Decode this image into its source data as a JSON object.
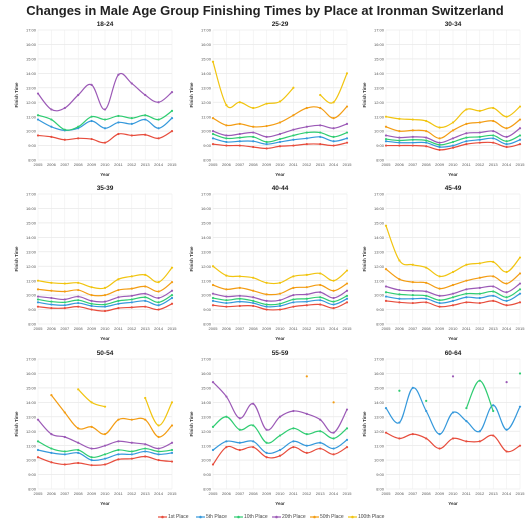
{
  "title": "Changes in Male Age Group Finishing Times by Place at Ironman Switzerland",
  "colors": {
    "1st Place": "#e74c3c",
    "5th Place": "#3498db",
    "10th Place": "#2ecc71",
    "20th Place": "#9b59b6",
    "50th Place": "#f39c12",
    "100th Place": "#f1c40f"
  },
  "legend": [
    "1st Place",
    "5th Place",
    "10th Place",
    "20th Place",
    "50th Place",
    "100th Place"
  ],
  "chart_data": [
    {
      "type": "line",
      "title": "18-24",
      "xlabel": "Year",
      "ylabel": "Finish Time",
      "x": [
        "2005",
        "2006",
        "2007",
        "2008",
        "2009",
        "2010",
        "2011",
        "2012",
        "2013",
        "2014",
        "2015"
      ],
      "y_ticks": [
        "8:00",
        "9:00",
        "10:00",
        "11:00",
        "12:00",
        "13:00",
        "14:00",
        "15:00",
        "16:00",
        "17:00"
      ],
      "ylim": [
        8,
        17
      ],
      "series": [
        {
          "name": "1st Place",
          "values": [
            9.7,
            9.6,
            9.4,
            9.5,
            9.45,
            9.2,
            9.8,
            9.7,
            9.75,
            9.5,
            10.0
          ]
        },
        {
          "name": "5th Place",
          "values": [
            10.8,
            10.3,
            10.05,
            10.2,
            10.7,
            10.2,
            10.6,
            10.5,
            10.8,
            10.2,
            10.9
          ]
        },
        {
          "name": "10th Place",
          "values": [
            11.1,
            10.8,
            10.1,
            10.3,
            11.0,
            10.8,
            11.05,
            10.9,
            11.1,
            10.8,
            11.4
          ]
        },
        {
          "name": "20th Place",
          "values": [
            12.6,
            11.5,
            11.6,
            12.5,
            13.2,
            11.5,
            13.9,
            13.3,
            12.5,
            12.0,
            12.7
          ]
        }
      ]
    },
    {
      "type": "line",
      "title": "25-29",
      "xlabel": "Year",
      "ylabel": "Finish Time",
      "x": [
        "2005",
        "2006",
        "2007",
        "2008",
        "2009",
        "2010",
        "2011",
        "2012",
        "2013",
        "2014",
        "2015"
      ],
      "y_ticks": [
        "8:00",
        "9:00",
        "10:00",
        "11:00",
        "12:00",
        "13:00",
        "14:00",
        "15:00",
        "16:00",
        "17:00"
      ],
      "ylim": [
        8,
        17
      ],
      "series": [
        {
          "name": "1st Place",
          "values": [
            9.1,
            9.0,
            9.0,
            8.9,
            8.8,
            8.95,
            9.0,
            9.1,
            9.1,
            9.0,
            9.2
          ]
        },
        {
          "name": "5th Place",
          "values": [
            9.5,
            9.25,
            9.3,
            9.3,
            9.1,
            9.25,
            9.4,
            9.5,
            9.6,
            9.3,
            9.5
          ]
        },
        {
          "name": "10th Place",
          "values": [
            9.8,
            9.5,
            9.55,
            9.6,
            9.25,
            9.45,
            9.7,
            9.9,
            9.9,
            9.6,
            9.9
          ]
        },
        {
          "name": "20th Place",
          "values": [
            10.0,
            9.7,
            9.8,
            9.9,
            9.6,
            9.8,
            10.1,
            10.3,
            10.4,
            10.2,
            10.5
          ]
        },
        {
          "name": "50th Place",
          "values": [
            10.9,
            10.4,
            10.5,
            10.3,
            10.35,
            10.6,
            11.1,
            11.6,
            11.6,
            10.9,
            11.7
          ]
        },
        {
          "name": "100th Place",
          "values": [
            14.8,
            11.8,
            12.0,
            11.6,
            11.9,
            12.05,
            13.0,
            null,
            12.5,
            12.0,
            14.0
          ]
        }
      ]
    },
    {
      "type": "line",
      "title": "30-34",
      "xlabel": "Year",
      "ylabel": "Finish Time",
      "x": [
        "2005",
        "2006",
        "2007",
        "2008",
        "2009",
        "2010",
        "2011",
        "2012",
        "2013",
        "2014",
        "2015"
      ],
      "y_ticks": [
        "8:00",
        "9:00",
        "10:00",
        "11:00",
        "12:00",
        "13:00",
        "14:00",
        "15:00",
        "16:00",
        "17:00"
      ],
      "ylim": [
        8,
        17
      ],
      "series": [
        {
          "name": "1st Place",
          "values": [
            9.0,
            9.0,
            9.0,
            8.95,
            8.7,
            8.85,
            9.1,
            9.2,
            9.2,
            8.9,
            9.1
          ]
        },
        {
          "name": "5th Place",
          "values": [
            9.3,
            9.2,
            9.2,
            9.2,
            8.9,
            9.0,
            9.3,
            9.4,
            9.5,
            9.1,
            9.4
          ]
        },
        {
          "name": "10th Place",
          "values": [
            9.45,
            9.35,
            9.4,
            9.35,
            9.05,
            9.25,
            9.55,
            9.6,
            9.7,
            9.3,
            9.7
          ]
        },
        {
          "name": "20th Place",
          "values": [
            9.7,
            9.55,
            9.6,
            9.55,
            9.2,
            9.5,
            9.85,
            9.9,
            10.0,
            9.6,
            10.2
          ]
        },
        {
          "name": "50th Place",
          "values": [
            10.3,
            10.0,
            10.05,
            10.0,
            9.5,
            10.05,
            10.5,
            10.6,
            10.7,
            10.2,
            10.8
          ]
        },
        {
          "name": "100th Place",
          "values": [
            11.0,
            10.85,
            10.8,
            10.7,
            10.25,
            10.6,
            11.5,
            11.4,
            11.6,
            11.0,
            11.7
          ]
        }
      ]
    },
    {
      "type": "line",
      "title": "35-39",
      "xlabel": "Year",
      "ylabel": "Finish Time",
      "x": [
        "2005",
        "2006",
        "2007",
        "2008",
        "2009",
        "2010",
        "2011",
        "2012",
        "2013",
        "2014",
        "2015"
      ],
      "y_ticks": [
        "8:00",
        "9:00",
        "10:00",
        "11:00",
        "12:00",
        "13:00",
        "14:00",
        "15:00",
        "16:00",
        "17:00"
      ],
      "ylim": [
        8,
        17
      ],
      "series": [
        {
          "name": "1st Place",
          "values": [
            9.2,
            9.1,
            9.1,
            9.2,
            9.0,
            8.9,
            9.1,
            9.15,
            9.2,
            9.0,
            9.4
          ]
        },
        {
          "name": "5th Place",
          "values": [
            9.5,
            9.35,
            9.3,
            9.45,
            9.25,
            9.2,
            9.4,
            9.5,
            9.6,
            9.3,
            9.8
          ]
        },
        {
          "name": "10th Place",
          "values": [
            9.7,
            9.55,
            9.5,
            9.65,
            9.4,
            9.35,
            9.6,
            9.7,
            9.85,
            9.5,
            10.0
          ]
        },
        {
          "name": "20th Place",
          "values": [
            9.9,
            9.8,
            9.7,
            9.9,
            9.6,
            9.55,
            9.85,
            9.95,
            10.1,
            9.8,
            10.3
          ]
        },
        {
          "name": "50th Place",
          "values": [
            10.4,
            10.3,
            10.25,
            10.35,
            10.0,
            10.0,
            10.35,
            10.45,
            10.6,
            10.25,
            10.9
          ]
        },
        {
          "name": "100th Place",
          "values": [
            11.0,
            10.85,
            10.8,
            10.85,
            10.55,
            10.5,
            11.1,
            11.3,
            11.4,
            10.9,
            11.9
          ]
        }
      ]
    },
    {
      "type": "line",
      "title": "40-44",
      "xlabel": "Year",
      "ylabel": "Finish Time",
      "x": [
        "2005",
        "2006",
        "2007",
        "2008",
        "2009",
        "2010",
        "2011",
        "2012",
        "2013",
        "2014",
        "2015"
      ],
      "y_ticks": [
        "8:00",
        "9:00",
        "10:00",
        "11:00",
        "12:00",
        "13:00",
        "14:00",
        "15:00",
        "16:00",
        "17:00"
      ],
      "ylim": [
        8,
        17
      ],
      "series": [
        {
          "name": "1st Place",
          "values": [
            9.3,
            9.2,
            9.25,
            9.25,
            9.0,
            9.0,
            9.2,
            9.3,
            9.35,
            9.1,
            9.5
          ]
        },
        {
          "name": "5th Place",
          "values": [
            9.6,
            9.45,
            9.55,
            9.45,
            9.2,
            9.25,
            9.5,
            9.55,
            9.65,
            9.35,
            9.75
          ]
        },
        {
          "name": "10th Place",
          "values": [
            9.8,
            9.65,
            9.75,
            9.6,
            9.35,
            9.4,
            9.7,
            9.75,
            9.85,
            9.55,
            9.95
          ]
        },
        {
          "name": "20th Place",
          "values": [
            10.1,
            9.9,
            9.95,
            9.85,
            9.6,
            9.65,
            10.0,
            10.05,
            10.2,
            9.8,
            10.3
          ]
        },
        {
          "name": "50th Place",
          "values": [
            10.7,
            10.4,
            10.5,
            10.3,
            10.05,
            10.1,
            10.5,
            10.55,
            10.7,
            10.3,
            10.8
          ]
        },
        {
          "name": "100th Place",
          "values": [
            12.0,
            11.35,
            11.3,
            11.2,
            10.85,
            10.85,
            11.3,
            11.4,
            11.5,
            11.0,
            11.7
          ]
        }
      ]
    },
    {
      "type": "line",
      "title": "45-49",
      "xlabel": "Year",
      "ylabel": "Finish Time",
      "x": [
        "2005",
        "2006",
        "2007",
        "2008",
        "2009",
        "2010",
        "2011",
        "2012",
        "2013",
        "2014",
        "2015"
      ],
      "y_ticks": [
        "8:00",
        "9:00",
        "10:00",
        "11:00",
        "12:00",
        "13:00",
        "14:00",
        "15:00",
        "16:00",
        "17:00"
      ],
      "ylim": [
        8,
        17
      ],
      "series": [
        {
          "name": "1st Place",
          "values": [
            9.6,
            9.5,
            9.45,
            9.5,
            9.2,
            9.3,
            9.5,
            9.45,
            9.6,
            9.3,
            9.5
          ]
        },
        {
          "name": "5th Place",
          "values": [
            9.9,
            9.75,
            9.75,
            9.75,
            9.45,
            9.6,
            9.85,
            9.8,
            9.95,
            9.6,
            10.1
          ]
        },
        {
          "name": "10th Place",
          "values": [
            10.2,
            10.05,
            10.0,
            9.95,
            9.65,
            9.85,
            10.1,
            10.1,
            10.25,
            9.85,
            10.4
          ]
        },
        {
          "name": "20th Place",
          "values": [
            10.6,
            10.35,
            10.3,
            10.25,
            9.95,
            10.1,
            10.4,
            10.5,
            10.6,
            10.2,
            10.8
          ]
        },
        {
          "name": "50th Place",
          "values": [
            11.8,
            11.1,
            10.9,
            10.85,
            10.45,
            10.7,
            11.0,
            11.2,
            11.3,
            10.8,
            11.5
          ]
        },
        {
          "name": "100th Place",
          "values": [
            14.8,
            12.4,
            12.1,
            11.9,
            11.3,
            11.6,
            12.1,
            12.2,
            12.3,
            11.6,
            12.6
          ]
        }
      ]
    },
    {
      "type": "line",
      "title": "50-54",
      "xlabel": "Year",
      "ylabel": "Finish Time",
      "x": [
        "2005",
        "2006",
        "2007",
        "2008",
        "2009",
        "2010",
        "2011",
        "2012",
        "2013",
        "2014",
        "2015"
      ],
      "y_ticks": [
        "8:00",
        "9:00",
        "10:00",
        "11:00",
        "12:00",
        "13:00",
        "14:00",
        "15:00",
        "16:00",
        "17:00"
      ],
      "ylim": [
        8,
        17
      ],
      "series": [
        {
          "name": "1st Place",
          "values": [
            10.2,
            9.85,
            9.7,
            9.8,
            9.65,
            9.7,
            10.05,
            10.1,
            10.25,
            10.0,
            9.9
          ]
        },
        {
          "name": "5th Place",
          "values": [
            10.7,
            10.5,
            10.4,
            10.5,
            10.0,
            10.1,
            10.4,
            10.4,
            10.6,
            10.4,
            10.5
          ]
        },
        {
          "name": "10th Place",
          "values": [
            11.3,
            10.8,
            10.6,
            10.7,
            10.2,
            10.4,
            10.7,
            10.6,
            10.8,
            10.6,
            10.7
          ]
        },
        {
          "name": "20th Place",
          "values": [
            12.8,
            11.8,
            11.6,
            11.2,
            10.8,
            11.0,
            11.3,
            11.2,
            11.1,
            10.8,
            11.2
          ]
        },
        {
          "name": "50th Place",
          "values": [
            null,
            14.5,
            13.3,
            12.2,
            12.3,
            11.8,
            12.8,
            12.8,
            12.8,
            11.6,
            12.4
          ]
        },
        {
          "name": "100th Place",
          "values": [
            null,
            null,
            null,
            14.9,
            14.0,
            13.7,
            null,
            null,
            14.3,
            12.4,
            14.0
          ]
        }
      ]
    },
    {
      "type": "line",
      "title": "55-59",
      "xlabel": "Year",
      "ylabel": "Finish Time",
      "x": [
        "2005",
        "2006",
        "2007",
        "2008",
        "2009",
        "2010",
        "2011",
        "2012",
        "2013",
        "2014",
        "2015"
      ],
      "y_ticks": [
        "8:00",
        "9:00",
        "10:00",
        "11:00",
        "12:00",
        "13:00",
        "14:00",
        "15:00",
        "16:00",
        "17:00"
      ],
      "ylim": [
        8,
        17
      ],
      "series": [
        {
          "name": "1st Place",
          "values": [
            9.7,
            10.9,
            10.7,
            10.9,
            10.2,
            10.3,
            10.9,
            10.5,
            10.8,
            10.4,
            10.9
          ]
        },
        {
          "name": "5th Place",
          "values": [
            10.7,
            11.3,
            11.2,
            11.3,
            10.5,
            10.7,
            11.3,
            11.0,
            11.2,
            10.8,
            11.4
          ]
        },
        {
          "name": "10th Place",
          "values": [
            12.3,
            13.0,
            12.1,
            12.4,
            11.2,
            11.7,
            12.2,
            11.8,
            12.0,
            11.5,
            12.2
          ]
        },
        {
          "name": "20th Place",
          "values": [
            15.4,
            14.4,
            12.9,
            13.9,
            12.1,
            13.0,
            13.4,
            13.2,
            12.8,
            11.9,
            13.5
          ]
        },
        {
          "name": "50th Place",
          "values": [
            null,
            null,
            null,
            null,
            null,
            null,
            null,
            15.8,
            null,
            14.0,
            null
          ]
        }
      ]
    },
    {
      "type": "line",
      "title": "60-64",
      "xlabel": "Year",
      "ylabel": "Finish Time",
      "x": [
        "2005",
        "2006",
        "2007",
        "2008",
        "2009",
        "2010",
        "2011",
        "2012",
        "2013",
        "2014",
        "2015"
      ],
      "y_ticks": [
        "8:00",
        "9:00",
        "10:00",
        "11:00",
        "12:00",
        "13:00",
        "14:00",
        "15:00",
        "16:00",
        "17:00"
      ],
      "ylim": [
        8,
        17
      ],
      "series": [
        {
          "name": "1st Place",
          "values": [
            11.9,
            11.5,
            11.8,
            11.5,
            10.8,
            11.5,
            11.3,
            11.3,
            11.7,
            10.6,
            11.0
          ]
        },
        {
          "name": "5th Place",
          "values": [
            13.6,
            12.6,
            15.0,
            13.4,
            11.8,
            13.3,
            12.7,
            12.0,
            13.8,
            12.1,
            13.7
          ]
        },
        {
          "name": "10th Place",
          "values": [
            null,
            14.8,
            null,
            14.1,
            null,
            null,
            13.6,
            15.5,
            13.4,
            null,
            16.0
          ]
        },
        {
          "name": "20th Place",
          "values": [
            null,
            null,
            null,
            null,
            null,
            15.8,
            null,
            null,
            null,
            15.4,
            null
          ]
        }
      ]
    }
  ]
}
